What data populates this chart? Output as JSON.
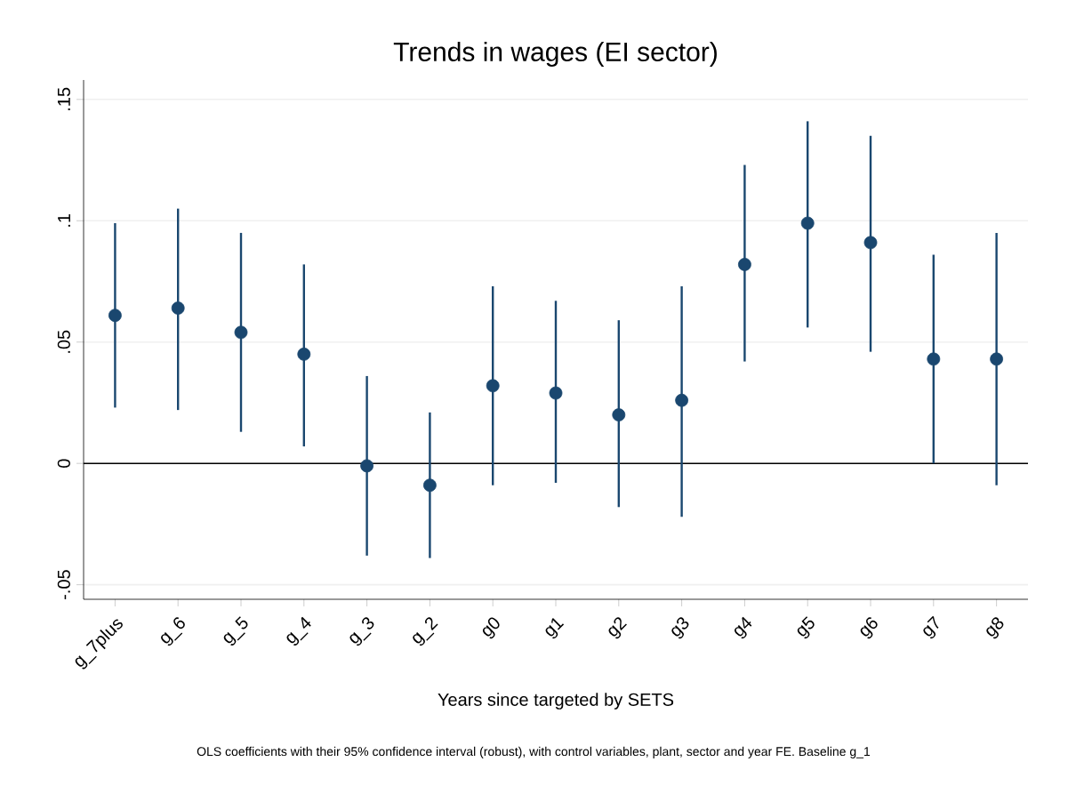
{
  "chart_data": {
    "type": "scatter",
    "title": "Trends in wages (EI sector)",
    "xlabel": "Years since targeted by SETS",
    "annotations": [
      "OLS coefficients with their 95% confidence interval (robust), with control variables, plant, sector and year FE. Baseline g_1"
    ],
    "categories": [
      "g_7plus",
      "g_6",
      "g_5",
      "g_4",
      "g_3",
      "g_2",
      "g0",
      "g1",
      "g2",
      "g3",
      "g4",
      "g5",
      "g6",
      "g7",
      "g8"
    ],
    "values": [
      0.061,
      0.064,
      0.054,
      0.045,
      -0.001,
      -0.009,
      0.032,
      0.029,
      0.02,
      0.026,
      0.082,
      0.099,
      0.091,
      0.043,
      0.043
    ],
    "errors": [
      [
        0.023,
        0.099
      ],
      [
        0.022,
        0.105
      ],
      [
        0.013,
        0.095
      ],
      [
        0.007,
        0.082
      ],
      [
        -0.038,
        0.036
      ],
      [
        -0.039,
        0.021
      ],
      [
        -0.009,
        0.073
      ],
      [
        -0.008,
        0.067
      ],
      [
        -0.018,
        0.059
      ],
      [
        -0.022,
        0.073
      ],
      [
        0.042,
        0.123
      ],
      [
        0.056,
        0.141
      ],
      [
        0.046,
        0.135
      ],
      [
        0.0,
        0.086
      ],
      [
        -0.009,
        0.095
      ]
    ],
    "color": "#1a476f",
    "marker": "circle",
    "grid": "y",
    "ylim": [
      -0.056,
      0.158
    ],
    "yticks": [
      {
        "value": -0.05,
        "label": "-.05"
      },
      {
        "value": 0,
        "label": "0"
      },
      {
        "value": 0.05,
        "label": ".05"
      },
      {
        "value": 0.1,
        "label": ".1"
      },
      {
        "value": 0.15,
        "label": ".15"
      }
    ],
    "ref_lines": [
      {
        "axis": "y",
        "value": 0,
        "color": "#000000"
      }
    ]
  }
}
